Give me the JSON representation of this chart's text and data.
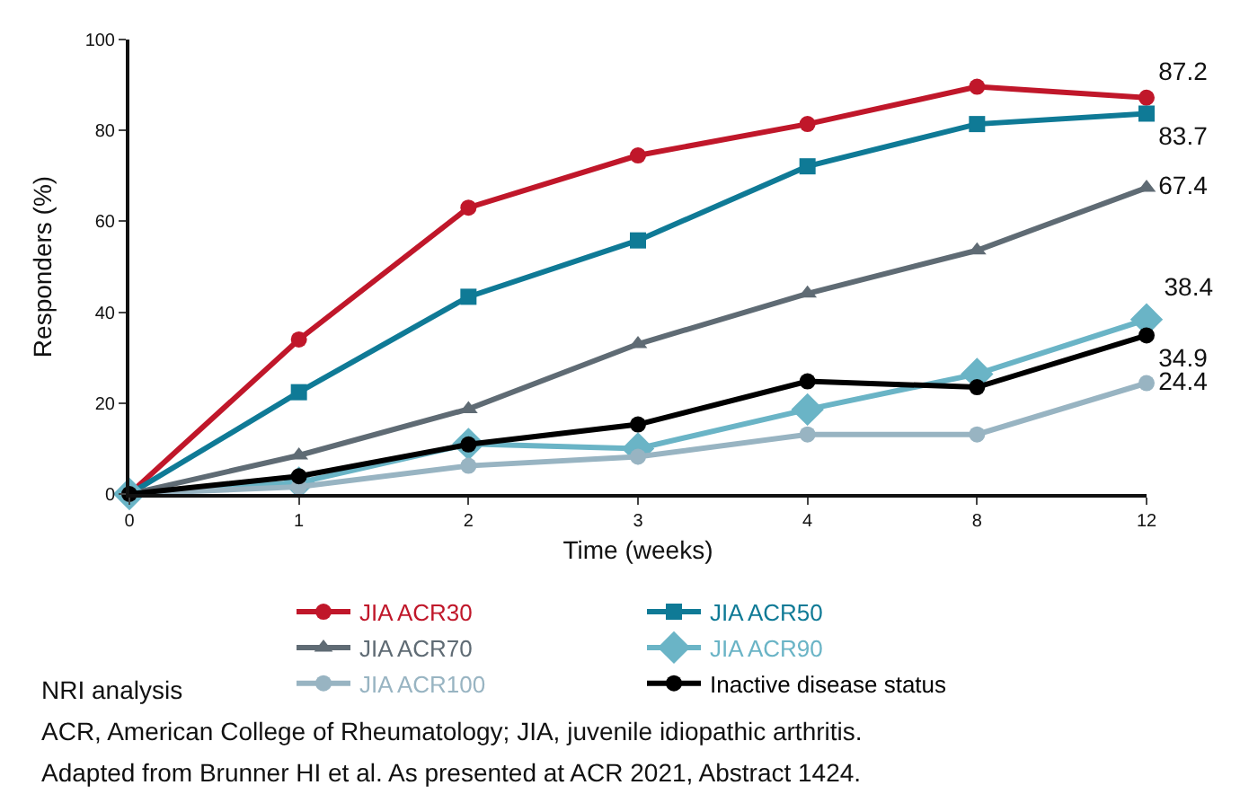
{
  "chart_data": {
    "type": "line",
    "xlabel": "Time (weeks)",
    "ylabel": "Responders (%)",
    "categories": [
      "0",
      "1",
      "2",
      "3",
      "4",
      "8",
      "12"
    ],
    "ylim": [
      0,
      100
    ],
    "yticks": [
      0,
      20,
      40,
      60,
      80,
      100
    ],
    "legend": "bottom",
    "line_style": "solid",
    "series": [
      {
        "name": "JIA ACR30",
        "color": "#c0172a",
        "marker": "circle",
        "values": [
          0,
          34.0,
          63.0,
          74.5,
          81.4,
          89.6,
          87.2
        ],
        "value_labels": [
          null,
          null,
          null,
          null,
          null,
          null,
          "87.2"
        ]
      },
      {
        "name": "JIA ACR50",
        "color": "#0f7a96",
        "marker": "square",
        "values": [
          0,
          22.4,
          43.4,
          55.8,
          72.1,
          81.4,
          83.7
        ],
        "value_labels": [
          null,
          null,
          null,
          null,
          null,
          null,
          "83.7"
        ]
      },
      {
        "name": "JIA ACR70",
        "color": "#5f6b74",
        "marker": "triangle",
        "values": [
          0,
          8.5,
          18.7,
          33.0,
          44.1,
          53.6,
          67.4
        ],
        "value_labels": [
          null,
          null,
          null,
          null,
          null,
          null,
          "67.4"
        ]
      },
      {
        "name": "JIA ACR90",
        "color": "#6ab4c6",
        "marker": "diamond",
        "values": [
          0,
          2.5,
          11.0,
          10.0,
          18.6,
          26.4,
          38.4
        ],
        "value_labels": [
          null,
          null,
          null,
          null,
          null,
          null,
          "38.4"
        ]
      },
      {
        "name": "JIA ACR100",
        "color": "#98b4c2",
        "marker": "circle",
        "values": [
          0,
          1.6,
          6.2,
          8.2,
          13.1,
          13.1,
          24.4
        ],
        "value_labels": [
          null,
          null,
          null,
          null,
          null,
          null,
          "24.4"
        ]
      },
      {
        "name": "Inactive disease status",
        "color": "#000000",
        "marker": "circle",
        "values": [
          0,
          3.9,
          10.9,
          15.3,
          24.8,
          23.5,
          34.9
        ],
        "value_labels": [
          null,
          null,
          null,
          null,
          null,
          null,
          "34.9"
        ]
      }
    ],
    "annotations": [
      "NRI analysis",
      "ACR, American College of Rheumatology; JIA, juvenile idiopathic arthritis.",
      "Adapted from Brunner HI et al. As presented at ACR 2021, Abstract 1424."
    ]
  }
}
